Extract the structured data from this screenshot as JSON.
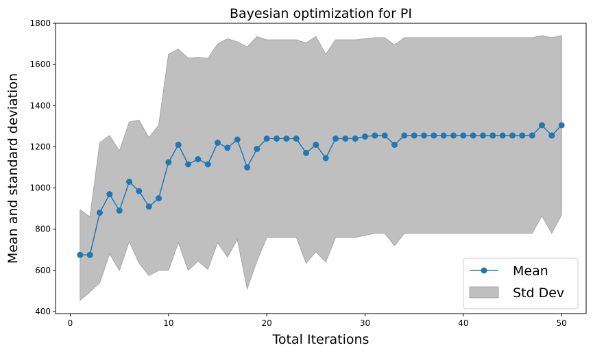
{
  "chart_data": {
    "type": "line",
    "title": "Bayesian optimization for PI",
    "xlabel": "Total Iterations",
    "ylabel": "Mean and standard deviation",
    "xlim": [
      -1.5,
      52.5
    ],
    "ylim": [
      390,
      1800
    ],
    "x_ticks": [
      0,
      10,
      20,
      30,
      40,
      50
    ],
    "y_ticks": [
      400,
      600,
      800,
      1000,
      1200,
      1400,
      1600,
      1800
    ],
    "x": [
      1,
      2,
      3,
      4,
      5,
      6,
      7,
      8,
      9,
      10,
      11,
      12,
      13,
      14,
      15,
      16,
      17,
      18,
      19,
      20,
      21,
      22,
      23,
      24,
      25,
      26,
      27,
      28,
      29,
      30,
      31,
      32,
      33,
      34,
      35,
      36,
      37,
      38,
      39,
      40,
      41,
      42,
      43,
      44,
      45,
      46,
      47,
      48,
      49,
      50
    ],
    "series": [
      {
        "name": "Mean",
        "color": "#1f77b4",
        "values": [
          675,
          675,
          880,
          970,
          890,
          1030,
          985,
          910,
          950,
          1125,
          1210,
          1115,
          1140,
          1115,
          1220,
          1195,
          1235,
          1100,
          1190,
          1240,
          1240,
          1240,
          1240,
          1170,
          1210,
          1145,
          1240,
          1240,
          1240,
          1250,
          1255,
          1255,
          1210,
          1255,
          1255,
          1255,
          1255,
          1255,
          1255,
          1255,
          1255,
          1255,
          1255,
          1255,
          1255,
          1255,
          1255,
          1305,
          1255,
          1305
        ]
      }
    ],
    "band": {
      "name": "Std Dev",
      "color": "#bfbfbf",
      "edge_color": "#a6a6a6",
      "upper": [
        895,
        860,
        1220,
        1255,
        1180,
        1320,
        1330,
        1245,
        1305,
        1650,
        1675,
        1630,
        1635,
        1630,
        1700,
        1725,
        1710,
        1685,
        1735,
        1720,
        1720,
        1720,
        1720,
        1705,
        1735,
        1650,
        1720,
        1720,
        1720,
        1725,
        1730,
        1730,
        1695,
        1730,
        1730,
        1730,
        1730,
        1730,
        1730,
        1730,
        1730,
        1730,
        1730,
        1730,
        1730,
        1730,
        1730,
        1740,
        1730,
        1740
      ],
      "lower": [
        455,
        495,
        540,
        680,
        600,
        740,
        635,
        575,
        600,
        600,
        735,
        600,
        645,
        605,
        735,
        665,
        750,
        510,
        645,
        760,
        760,
        760,
        760,
        635,
        690,
        640,
        760,
        760,
        760,
        770,
        780,
        780,
        720,
        780,
        780,
        780,
        780,
        780,
        780,
        780,
        780,
        780,
        780,
        780,
        780,
        780,
        780,
        865,
        780,
        870
      ]
    },
    "legend_position": "lower-right",
    "grid": false
  }
}
